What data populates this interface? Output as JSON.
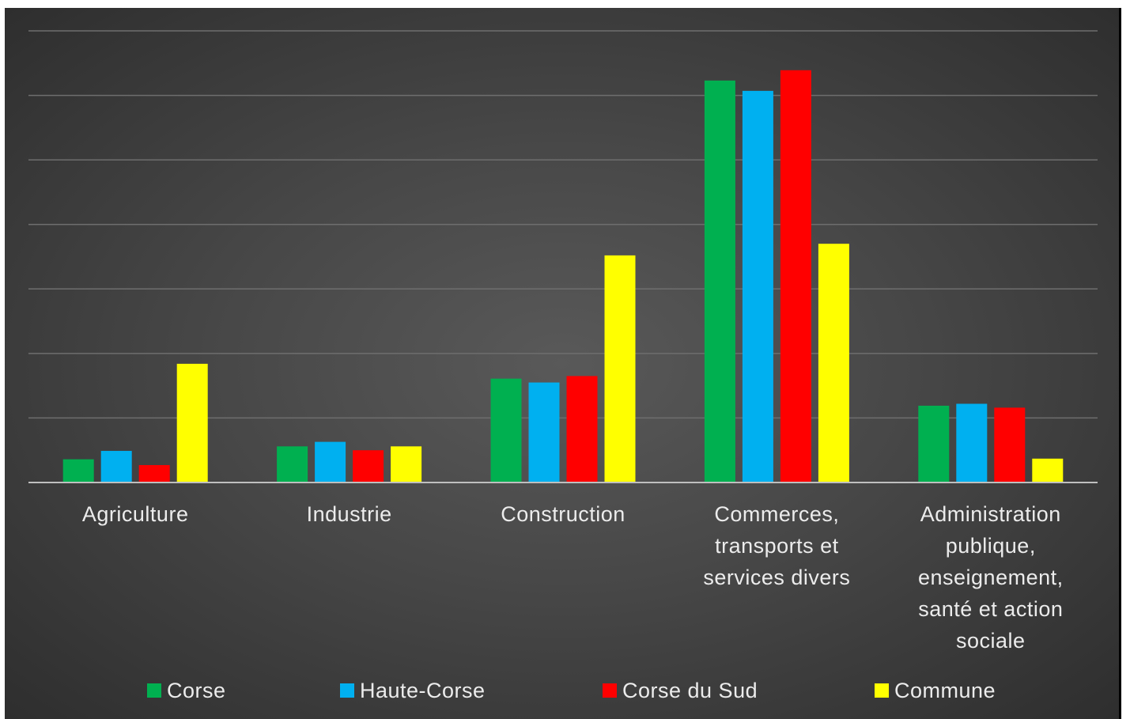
{
  "chart_data": {
    "type": "bar",
    "categories": [
      [
        "Agriculture"
      ],
      [
        "Industrie"
      ],
      [
        "Construction"
      ],
      [
        "Commerces,",
        "transports et",
        "services divers"
      ],
      [
        "Administration",
        "publique,",
        "enseignement,",
        "santé et action",
        "sociale"
      ]
    ],
    "series": [
      {
        "name": "Corse",
        "color": "#00b050",
        "values": [
          3.6,
          5.6,
          16.1,
          62.3,
          11.9
        ]
      },
      {
        "name": "Haute-Corse",
        "color": "#00b0f0",
        "values": [
          4.9,
          6.3,
          15.5,
          60.7,
          12.2
        ]
      },
      {
        "name": "Corse du Sud",
        "color": "#ff0000",
        "values": [
          2.7,
          5.0,
          16.5,
          63.9,
          11.6
        ]
      },
      {
        "name": "Commune",
        "color": "#ffff00",
        "values": [
          18.4,
          5.6,
          35.2,
          37.0,
          3.7
        ]
      }
    ],
    "ylim": [
      0,
      70
    ],
    "y_gridlines": [
      0,
      10,
      20,
      30,
      40,
      50,
      60,
      70
    ],
    "grid": true,
    "y_tick_labels": false,
    "legend": "bottom",
    "title": "",
    "xlabel": "",
    "ylabel": ""
  }
}
